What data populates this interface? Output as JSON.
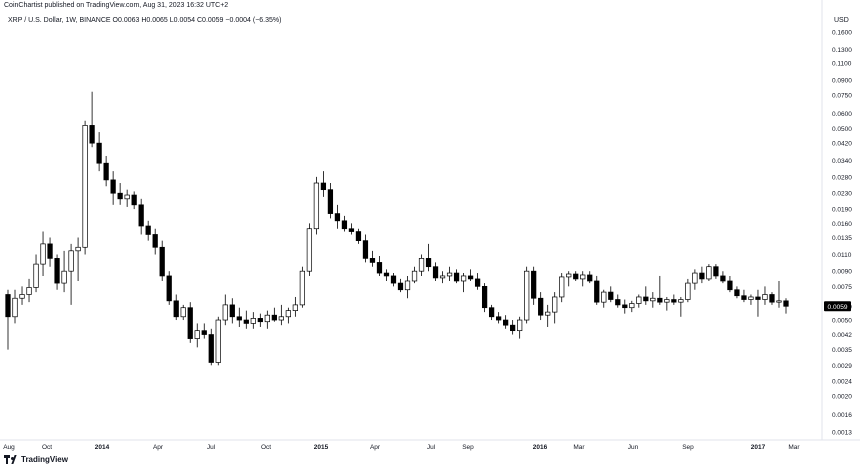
{
  "header": {
    "published": "CoinChartist published on TradingView.com, Aug 31, 2023 16:32 UTC+2",
    "symbol": "XRP / U.S. Dollar, 1W, BINANCE",
    "ohlc": "O0.0063 H0.0065 L0.0054 C0.0059",
    "change": "−0.0004 (−6.35%)",
    "currency": "USD"
  },
  "footer": {
    "brand": "TradingView",
    "logo_icon": "tradingview-logo-icon"
  },
  "colors": {
    "up": "#ffffff",
    "down": "#000000",
    "wick": "#000000",
    "price_tag": "#000000",
    "grid": "#ffffff"
  },
  "chart_data": {
    "type": "candlestick",
    "scale": "log",
    "ylim": [
      0.0011,
      0.19
    ],
    "y_ticks": [
      "0.1600",
      "0.1300",
      "0.1100",
      "0.0900",
      "0.0750",
      "0.0600",
      "0.0500",
      "0.0420",
      "0.0340",
      "0.0280",
      "0.0230",
      "0.0190",
      "0.0160",
      "0.0135",
      "0.0110",
      "0.0090",
      "0.0075",
      "0.0059",
      "0.0050",
      "0.0042",
      "0.0035",
      "0.0029",
      "0.0024",
      "0.0020",
      "0.0016",
      "0.0013"
    ],
    "last_price": "0.0059",
    "x_labels": [
      "Aug",
      "Oct",
      "2014",
      "Apr",
      "Jul",
      "Oct",
      "2015",
      "Apr",
      "Jul",
      "Sep",
      "2016",
      "Mar",
      "Jun",
      "Sep",
      "2017",
      "Mar"
    ],
    "candles": [
      {
        "o": 0.0068,
        "h": 0.0072,
        "l": 0.0035,
        "c": 0.0052
      },
      {
        "o": 0.0052,
        "h": 0.0072,
        "l": 0.0048,
        "c": 0.0065
      },
      {
        "o": 0.0065,
        "h": 0.0075,
        "l": 0.006,
        "c": 0.0068
      },
      {
        "o": 0.0068,
        "h": 0.0082,
        "l": 0.0062,
        "c": 0.0074
      },
      {
        "o": 0.0074,
        "h": 0.011,
        "l": 0.007,
        "c": 0.0098
      },
      {
        "o": 0.0098,
        "h": 0.0145,
        "l": 0.0085,
        "c": 0.0125
      },
      {
        "o": 0.0125,
        "h": 0.0135,
        "l": 0.0095,
        "c": 0.0105
      },
      {
        "o": 0.0105,
        "h": 0.011,
        "l": 0.0072,
        "c": 0.0078
      },
      {
        "o": 0.0078,
        "h": 0.0115,
        "l": 0.007,
        "c": 0.009
      },
      {
        "o": 0.009,
        "h": 0.0125,
        "l": 0.006,
        "c": 0.0115
      },
      {
        "o": 0.0115,
        "h": 0.0135,
        "l": 0.008,
        "c": 0.012
      },
      {
        "o": 0.012,
        "h": 0.055,
        "l": 0.011,
        "c": 0.052
      },
      {
        "o": 0.052,
        "h": 0.078,
        "l": 0.04,
        "c": 0.042
      },
      {
        "o": 0.042,
        "h": 0.048,
        "l": 0.03,
        "c": 0.033
      },
      {
        "o": 0.033,
        "h": 0.036,
        "l": 0.025,
        "c": 0.027
      },
      {
        "o": 0.027,
        "h": 0.03,
        "l": 0.02,
        "c": 0.023
      },
      {
        "o": 0.023,
        "h": 0.026,
        "l": 0.02,
        "c": 0.0215
      },
      {
        "o": 0.0215,
        "h": 0.024,
        "l": 0.0195,
        "c": 0.0225
      },
      {
        "o": 0.0225,
        "h": 0.0235,
        "l": 0.019,
        "c": 0.02
      },
      {
        "o": 0.02,
        "h": 0.0215,
        "l": 0.014,
        "c": 0.0155
      },
      {
        "o": 0.0155,
        "h": 0.0165,
        "l": 0.013,
        "c": 0.014
      },
      {
        "o": 0.014,
        "h": 0.015,
        "l": 0.011,
        "c": 0.012
      },
      {
        "o": 0.012,
        "h": 0.013,
        "l": 0.008,
        "c": 0.0085
      },
      {
        "o": 0.0085,
        "h": 0.009,
        "l": 0.006,
        "c": 0.0063
      },
      {
        "o": 0.0063,
        "h": 0.0068,
        "l": 0.005,
        "c": 0.0052
      },
      {
        "o": 0.0052,
        "h": 0.006,
        "l": 0.005,
        "c": 0.0058
      },
      {
        "o": 0.0058,
        "h": 0.0062,
        "l": 0.0038,
        "c": 0.004
      },
      {
        "o": 0.004,
        "h": 0.0048,
        "l": 0.0036,
        "c": 0.0044
      },
      {
        "o": 0.0044,
        "h": 0.0048,
        "l": 0.004,
        "c": 0.0042
      },
      {
        "o": 0.0042,
        "h": 0.0045,
        "l": 0.0029,
        "c": 0.003
      },
      {
        "o": 0.003,
        "h": 0.0052,
        "l": 0.0029,
        "c": 0.005
      },
      {
        "o": 0.005,
        "h": 0.0068,
        "l": 0.0047,
        "c": 0.006
      },
      {
        "o": 0.006,
        "h": 0.0065,
        "l": 0.0048,
        "c": 0.0052
      },
      {
        "o": 0.0052,
        "h": 0.0058,
        "l": 0.0046,
        "c": 0.005
      },
      {
        "o": 0.005,
        "h": 0.0056,
        "l": 0.0045,
        "c": 0.0048
      },
      {
        "o": 0.0048,
        "h": 0.0055,
        "l": 0.0045,
        "c": 0.0051
      },
      {
        "o": 0.0051,
        "h": 0.0054,
        "l": 0.0046,
        "c": 0.0049
      },
      {
        "o": 0.0049,
        "h": 0.0056,
        "l": 0.0045,
        "c": 0.0053
      },
      {
        "o": 0.0053,
        "h": 0.0058,
        "l": 0.0049,
        "c": 0.005
      },
      {
        "o": 0.005,
        "h": 0.006,
        "l": 0.0047,
        "c": 0.0052
      },
      {
        "o": 0.0052,
        "h": 0.0058,
        "l": 0.0048,
        "c": 0.0056
      },
      {
        "o": 0.0056,
        "h": 0.0066,
        "l": 0.0052,
        "c": 0.006
      },
      {
        "o": 0.006,
        "h": 0.0095,
        "l": 0.0058,
        "c": 0.009
      },
      {
        "o": 0.009,
        "h": 0.016,
        "l": 0.0085,
        "c": 0.015
      },
      {
        "o": 0.015,
        "h": 0.028,
        "l": 0.014,
        "c": 0.026
      },
      {
        "o": 0.026,
        "h": 0.03,
        "l": 0.022,
        "c": 0.024
      },
      {
        "o": 0.024,
        "h": 0.026,
        "l": 0.017,
        "c": 0.018
      },
      {
        "o": 0.018,
        "h": 0.02,
        "l": 0.015,
        "c": 0.0165
      },
      {
        "o": 0.0165,
        "h": 0.0175,
        "l": 0.0145,
        "c": 0.015
      },
      {
        "o": 0.015,
        "h": 0.016,
        "l": 0.014,
        "c": 0.0145
      },
      {
        "o": 0.0145,
        "h": 0.015,
        "l": 0.0125,
        "c": 0.013
      },
      {
        "o": 0.013,
        "h": 0.014,
        "l": 0.01,
        "c": 0.0105
      },
      {
        "o": 0.0105,
        "h": 0.0115,
        "l": 0.0095,
        "c": 0.01
      },
      {
        "o": 0.01,
        "h": 0.0108,
        "l": 0.0085,
        "c": 0.0088
      },
      {
        "o": 0.0088,
        "h": 0.0092,
        "l": 0.008,
        "c": 0.0085
      },
      {
        "o": 0.0085,
        "h": 0.0088,
        "l": 0.0075,
        "c": 0.0078
      },
      {
        "o": 0.0078,
        "h": 0.0082,
        "l": 0.007,
        "c": 0.0072
      },
      {
        "o": 0.0072,
        "h": 0.0085,
        "l": 0.0065,
        "c": 0.008
      },
      {
        "o": 0.008,
        "h": 0.0095,
        "l": 0.0078,
        "c": 0.009
      },
      {
        "o": 0.009,
        "h": 0.011,
        "l": 0.0085,
        "c": 0.0105
      },
      {
        "o": 0.0105,
        "h": 0.0125,
        "l": 0.009,
        "c": 0.0095
      },
      {
        "o": 0.0095,
        "h": 0.01,
        "l": 0.008,
        "c": 0.0083
      },
      {
        "o": 0.0083,
        "h": 0.009,
        "l": 0.0078,
        "c": 0.0085
      },
      {
        "o": 0.0085,
        "h": 0.0095,
        "l": 0.008,
        "c": 0.0088
      },
      {
        "o": 0.0088,
        "h": 0.0092,
        "l": 0.0078,
        "c": 0.008
      },
      {
        "o": 0.008,
        "h": 0.0088,
        "l": 0.007,
        "c": 0.0085
      },
      {
        "o": 0.0085,
        "h": 0.0092,
        "l": 0.008,
        "c": 0.0082
      },
      {
        "o": 0.0082,
        "h": 0.0088,
        "l": 0.0072,
        "c": 0.0075
      },
      {
        "o": 0.0075,
        "h": 0.0078,
        "l": 0.0055,
        "c": 0.0058
      },
      {
        "o": 0.0058,
        "h": 0.006,
        "l": 0.005,
        "c": 0.0052
      },
      {
        "o": 0.0052,
        "h": 0.0055,
        "l": 0.0048,
        "c": 0.005
      },
      {
        "o": 0.005,
        "h": 0.0053,
        "l": 0.0045,
        "c": 0.0047
      },
      {
        "o": 0.0047,
        "h": 0.005,
        "l": 0.0042,
        "c": 0.0044
      },
      {
        "o": 0.0044,
        "h": 0.0052,
        "l": 0.004,
        "c": 0.005
      },
      {
        "o": 0.005,
        "h": 0.0095,
        "l": 0.0048,
        "c": 0.009
      },
      {
        "o": 0.009,
        "h": 0.0095,
        "l": 0.006,
        "c": 0.0065
      },
      {
        "o": 0.0065,
        "h": 0.007,
        "l": 0.005,
        "c": 0.0053
      },
      {
        "o": 0.0053,
        "h": 0.006,
        "l": 0.0046,
        "c": 0.0055
      },
      {
        "o": 0.0055,
        "h": 0.007,
        "l": 0.0048,
        "c": 0.0066
      },
      {
        "o": 0.0066,
        "h": 0.0088,
        "l": 0.0062,
        "c": 0.0084
      },
      {
        "o": 0.0084,
        "h": 0.009,
        "l": 0.0075,
        "c": 0.0087
      },
      {
        "o": 0.0087,
        "h": 0.009,
        "l": 0.008,
        "c": 0.0082
      },
      {
        "o": 0.0082,
        "h": 0.009,
        "l": 0.0075,
        "c": 0.0086
      },
      {
        "o": 0.0086,
        "h": 0.009,
        "l": 0.0078,
        "c": 0.008
      },
      {
        "o": 0.008,
        "h": 0.0085,
        "l": 0.006,
        "c": 0.0062
      },
      {
        "o": 0.0062,
        "h": 0.0072,
        "l": 0.0058,
        "c": 0.007
      },
      {
        "o": 0.007,
        "h": 0.0075,
        "l": 0.0062,
        "c": 0.0064
      },
      {
        "o": 0.0064,
        "h": 0.0068,
        "l": 0.0058,
        "c": 0.006
      },
      {
        "o": 0.006,
        "h": 0.0064,
        "l": 0.0054,
        "c": 0.0058
      },
      {
        "o": 0.0058,
        "h": 0.0063,
        "l": 0.0055,
        "c": 0.0061
      },
      {
        "o": 0.0061,
        "h": 0.0068,
        "l": 0.0058,
        "c": 0.0066
      },
      {
        "o": 0.0066,
        "h": 0.0075,
        "l": 0.006,
        "c": 0.0063
      },
      {
        "o": 0.0063,
        "h": 0.007,
        "l": 0.0058,
        "c": 0.0065
      },
      {
        "o": 0.0065,
        "h": 0.0085,
        "l": 0.006,
        "c": 0.0062
      },
      {
        "o": 0.0062,
        "h": 0.0066,
        "l": 0.0056,
        "c": 0.0064
      },
      {
        "o": 0.0064,
        "h": 0.0068,
        "l": 0.006,
        "c": 0.0062
      },
      {
        "o": 0.0062,
        "h": 0.0066,
        "l": 0.0052,
        "c": 0.0064
      },
      {
        "o": 0.0064,
        "h": 0.0082,
        "l": 0.0062,
        "c": 0.0078
      },
      {
        "o": 0.0078,
        "h": 0.0092,
        "l": 0.0072,
        "c": 0.0088
      },
      {
        "o": 0.0088,
        "h": 0.0095,
        "l": 0.0078,
        "c": 0.0082
      },
      {
        "o": 0.0082,
        "h": 0.0098,
        "l": 0.008,
        "c": 0.0095
      },
      {
        "o": 0.0095,
        "h": 0.0098,
        "l": 0.0082,
        "c": 0.0085
      },
      {
        "o": 0.0085,
        "h": 0.009,
        "l": 0.0078,
        "c": 0.008
      },
      {
        "o": 0.008,
        "h": 0.0085,
        "l": 0.007,
        "c": 0.0072
      },
      {
        "o": 0.0072,
        "h": 0.0075,
        "l": 0.0065,
        "c": 0.0067
      },
      {
        "o": 0.0067,
        "h": 0.0072,
        "l": 0.0062,
        "c": 0.0064
      },
      {
        "o": 0.0064,
        "h": 0.0068,
        "l": 0.006,
        "c": 0.0066
      },
      {
        "o": 0.0066,
        "h": 0.0072,
        "l": 0.0052,
        "c": 0.0064
      },
      {
        "o": 0.0064,
        "h": 0.0075,
        "l": 0.006,
        "c": 0.0068
      },
      {
        "o": 0.0068,
        "h": 0.007,
        "l": 0.006,
        "c": 0.0062
      },
      {
        "o": 0.0062,
        "h": 0.008,
        "l": 0.0058,
        "c": 0.0063
      },
      {
        "o": 0.0063,
        "h": 0.0065,
        "l": 0.0054,
        "c": 0.0059
      }
    ]
  }
}
